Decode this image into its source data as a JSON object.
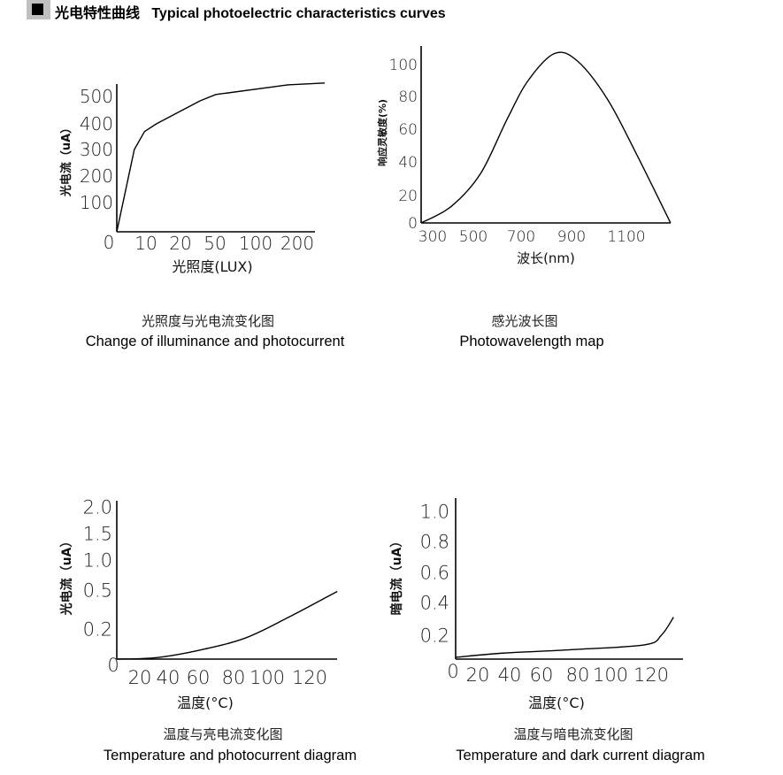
{
  "header": {
    "icon": "black-square-icon",
    "title": "光电特性曲线   Typical photoelectric characteristics curves"
  },
  "chart_data": [
    {
      "type": "line",
      "title_cn": "光照度与光电流变化图",
      "title": "Change of illuminance and photocurrent",
      "xlabel": "光照度(LUX)",
      "ylabel": "光电流（uA）",
      "x_ticks": [
        "0",
        "10",
        "20",
        "50",
        "100",
        "200"
      ],
      "y_ticks": [
        "100",
        "200",
        "300",
        "400",
        "500"
      ],
      "x_scale": "non-uniform",
      "grid": false,
      "points": [
        [
          0,
          0
        ],
        [
          6,
          300
        ],
        [
          9.5,
          370
        ],
        [
          13,
          400
        ],
        [
          37,
          484
        ],
        [
          51,
          507
        ],
        [
          177,
          542
        ],
        [
          266,
          549
        ]
      ]
    },
    {
      "type": "line",
      "title_cn": "感光波长图",
      "title": "Photowavelength map",
      "xlabel": "波长(nm)",
      "ylabel": "响应灵敏度(%)",
      "x_ticks": [
        "300",
        "500",
        "700",
        "900",
        "1100"
      ],
      "y_ticks": [
        "0",
        "20",
        "40",
        "60",
        "80",
        "100"
      ],
      "grid": false,
      "points": [
        [
          245,
          0
        ],
        [
          391,
          12
        ],
        [
          530,
          33
        ],
        [
          641,
          66
        ],
        [
          728,
          90
        ],
        [
          833,
          107
        ],
        [
          923,
          102
        ],
        [
          1032,
          78
        ],
        [
          1139,
          44
        ],
        [
          1261,
          0
        ]
      ]
    },
    {
      "type": "line",
      "title_cn": "温度与亮电流变化图",
      "title": "Temperature and photocurrent diagram",
      "xlabel": "温度(°C)",
      "ylabel": "光电流（uA）",
      "x_ticks": [
        "0",
        "20",
        "40",
        "60",
        "80",
        "100",
        "120"
      ],
      "y_ticks": [
        "0.2",
        "0.5",
        "1.0",
        "1.5",
        "2.0"
      ],
      "y_scale": "non-uniform",
      "grid": false,
      "points": [
        [
          0,
          0
        ],
        [
          32,
          0.01
        ],
        [
          61,
          0.06
        ],
        [
          87,
          0.14
        ],
        [
          110,
          0.29
        ],
        [
          133,
          0.49
        ]
      ]
    },
    {
      "type": "line",
      "title_cn": "温度与暗电流变化图",
      "title": "Temperature and dark current diagram",
      "xlabel": "温度(°C)",
      "ylabel": "暗电流（uA）",
      "x_ticks": [
        "0",
        "20",
        "40",
        "60",
        "80",
        "100",
        "120"
      ],
      "y_ticks": [
        "0.2",
        "0.4",
        "0.6",
        "0.8",
        "1.0"
      ],
      "grid": false,
      "points": [
        [
          0,
          0.015
        ],
        [
          36,
          0.05
        ],
        [
          78,
          0.08
        ],
        [
          117,
          0.12
        ],
        [
          125,
          0.2
        ],
        [
          131,
          0.31
        ]
      ]
    }
  ]
}
